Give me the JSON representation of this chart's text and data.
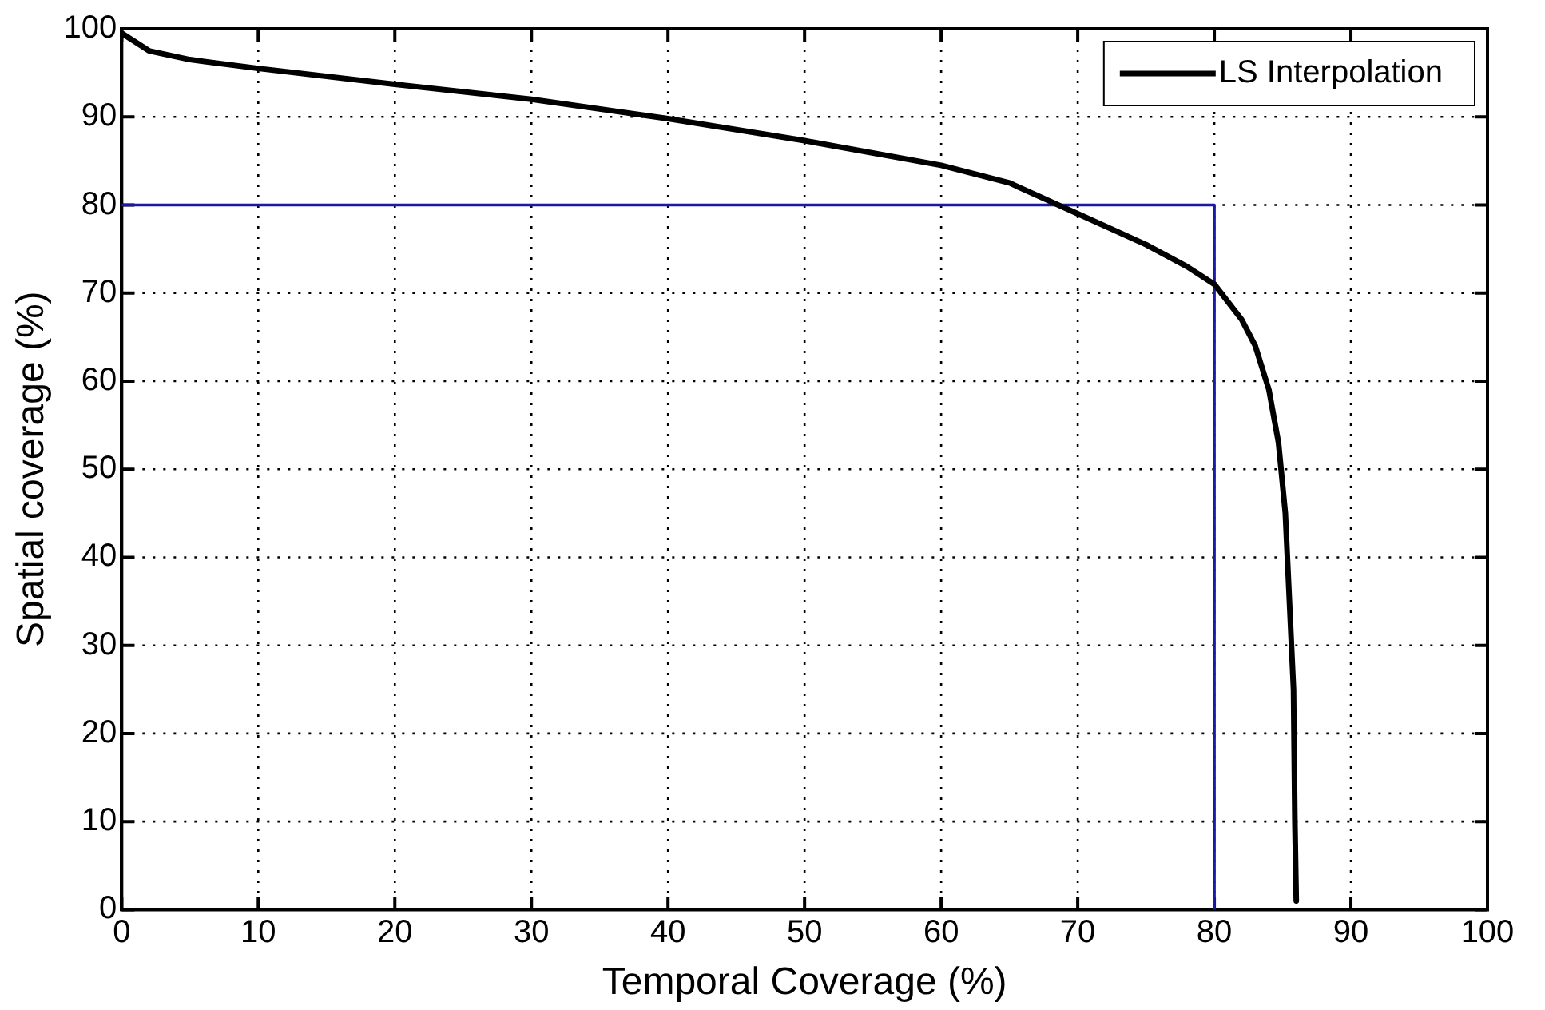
{
  "chart_data": {
    "type": "line",
    "xlabel": "Temporal Coverage (%)",
    "ylabel": "Spatial coverage (%)",
    "xlim": [
      0,
      100
    ],
    "xticks": [
      0,
      10,
      20,
      30,
      40,
      50,
      60,
      70,
      80,
      90,
      100
    ],
    "ylim": [
      0,
      100
    ],
    "yticks": [
      0,
      10,
      20,
      30,
      40,
      50,
      60,
      70,
      80,
      90,
      100
    ],
    "grid": true,
    "legend": "top right",
    "line_style": "solid",
    "marker": "none",
    "series": [
      {
        "name": "LS Interpolation",
        "color": "#000000",
        "x": [
          0,
          2,
          5,
          10,
          20,
          30,
          40,
          50,
          60,
          65,
          70,
          75,
          78,
          80,
          82,
          83,
          84,
          84.7,
          85.2,
          85.5,
          85.8,
          85.9,
          86
        ],
        "values": [
          99.5,
          97.5,
          96.5,
          95.5,
          93.7,
          92,
          89.8,
          87.3,
          84.5,
          82.5,
          79,
          75.5,
          73,
          71,
          67,
          64,
          59,
          53,
          45,
          35,
          25,
          10,
          1
        ]
      },
      {
        "color": "#1a1aa6",
        "x": [
          0,
          80,
          80
        ],
        "values": [
          80,
          80,
          0
        ]
      }
    ]
  }
}
